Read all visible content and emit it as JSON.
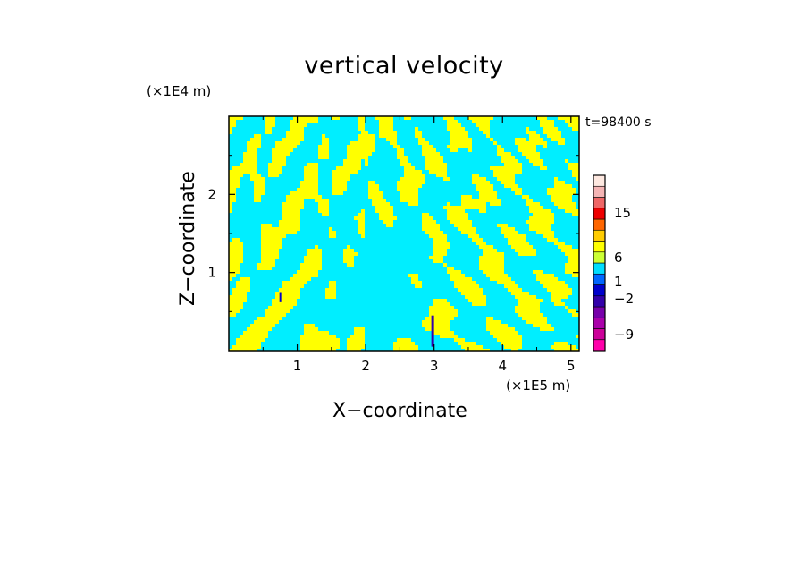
{
  "chart_data": {
    "type": "heatmap",
    "title": "vertical velocity",
    "xlabel": "X−coordinate",
    "ylabel": "Z−coordinate",
    "x_unit": "(×1E5 m)",
    "y_unit": "(×1E4 m)",
    "time_label": "t=98400 s",
    "xlim": [
      0,
      5.12
    ],
    "ylim": [
      0,
      3.0
    ],
    "x_ticks": [
      "1",
      "2",
      "3",
      "4",
      "5"
    ],
    "x_tick_values": [
      1,
      2,
      3,
      4,
      5
    ],
    "y_ticks": [
      "1",
      "2"
    ],
    "y_tick_values": [
      1,
      2
    ],
    "dominant_colors": {
      "positive": "#ffff00",
      "negative": "#00eeff"
    },
    "colorbar": {
      "levels": [
        {
          "color": "#ff00aa"
        },
        {
          "color": "#cc0099"
        },
        {
          "color": "#aa00aa"
        },
        {
          "color": "#7700aa"
        },
        {
          "color": "#3300aa"
        },
        {
          "color": "#0000cc"
        },
        {
          "color": "#0066ff"
        },
        {
          "color": "#00ddff"
        },
        {
          "color": "#ccff33"
        },
        {
          "color": "#ffff00"
        },
        {
          "color": "#ffcc00"
        },
        {
          "color": "#ff6600"
        },
        {
          "color": "#ee0000"
        },
        {
          "color": "#ee6666"
        },
        {
          "color": "#f4b4b4"
        },
        {
          "color": "#fde8e0"
        }
      ],
      "tick_labels": [
        "15",
        "6",
        "1",
        "−2",
        "−9"
      ],
      "tick_values": [
        15,
        6,
        1,
        -2,
        -9
      ]
    }
  }
}
